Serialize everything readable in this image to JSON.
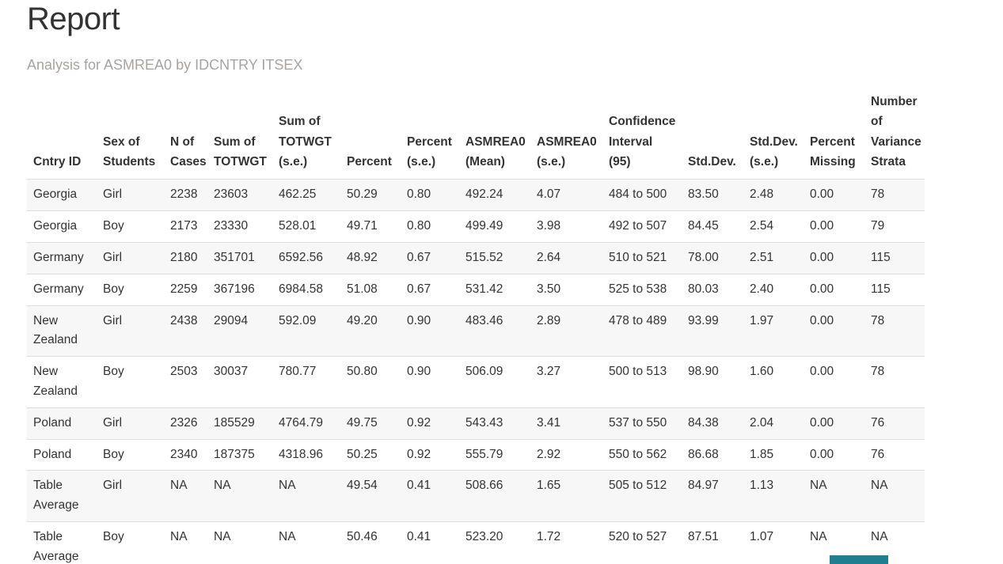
{
  "page": {
    "title": "Report",
    "subtitle": "Analysis for ASMREA0 by IDCNTRY ITSEX"
  },
  "table": {
    "columns": [
      "Cntry ID",
      "Sex of Students",
      "N of Cases",
      "Sum of TOTWGT",
      "Sum of TOTWGT (s.e.)",
      "Percent",
      "Percent (s.e.)",
      "ASMREA0 (Mean)",
      "ASMREA0 (s.e.)",
      "Confidence Interval (95)",
      "Std.Dev.",
      "Std.Dev. (s.e.)",
      "Percent Missing",
      "Number of Variance Strata"
    ],
    "rows": [
      [
        "Georgia",
        "Girl",
        "2238",
        "23603",
        "462.25",
        "50.29",
        "0.80",
        "492.24",
        "4.07",
        "484 to 500",
        "83.50",
        "2.48",
        "0.00",
        "78"
      ],
      [
        "Georgia",
        "Boy",
        "2173",
        "23330",
        "528.01",
        "49.71",
        "0.80",
        "499.49",
        "3.98",
        "492 to 507",
        "84.45",
        "2.54",
        "0.00",
        "79"
      ],
      [
        "Germany",
        "Girl",
        "2180",
        "351701",
        "6592.56",
        "48.92",
        "0.67",
        "515.52",
        "2.64",
        "510 to 521",
        "78.00",
        "2.51",
        "0.00",
        "115"
      ],
      [
        "Germany",
        "Boy",
        "2259",
        "367196",
        "6984.58",
        "51.08",
        "0.67",
        "531.42",
        "3.50",
        "525 to 538",
        "80.03",
        "2.40",
        "0.00",
        "115"
      ],
      [
        "New Zealand",
        "Girl",
        "2438",
        "29094",
        "592.09",
        "49.20",
        "0.90",
        "483.46",
        "2.89",
        "478 to 489",
        "93.99",
        "1.97",
        "0.00",
        "78"
      ],
      [
        "New Zealand",
        "Boy",
        "2503",
        "30037",
        "780.77",
        "50.80",
        "0.90",
        "506.09",
        "3.27",
        "500 to 513",
        "98.90",
        "1.60",
        "0.00",
        "78"
      ],
      [
        "Poland",
        "Girl",
        "2326",
        "185529",
        "4764.79",
        "49.75",
        "0.92",
        "543.43",
        "3.41",
        "537 to 550",
        "84.38",
        "2.04",
        "0.00",
        "76"
      ],
      [
        "Poland",
        "Boy",
        "2340",
        "187375",
        "4318.96",
        "50.25",
        "0.92",
        "555.79",
        "2.92",
        "550 to 562",
        "86.68",
        "1.85",
        "0.00",
        "76"
      ],
      [
        "Table Average",
        "Girl",
        "NA",
        "NA",
        "NA",
        "49.54",
        "0.41",
        "508.66",
        "1.65",
        "505 to 512",
        "84.97",
        "1.13",
        "NA",
        "NA"
      ],
      [
        "Table Average",
        "Boy",
        "NA",
        "NA",
        "NA",
        "50.46",
        "0.41",
        "523.20",
        "1.72",
        "520 to 527",
        "87.51",
        "1.07",
        "NA",
        "NA"
      ]
    ]
  },
  "colors": {
    "title_text": "#333333",
    "subtitle_text": "#a9a2a2",
    "row_stripe": "#f7f7f7",
    "row_border": "#dddddd",
    "bottom_bar_teal": "#1f7f91"
  }
}
